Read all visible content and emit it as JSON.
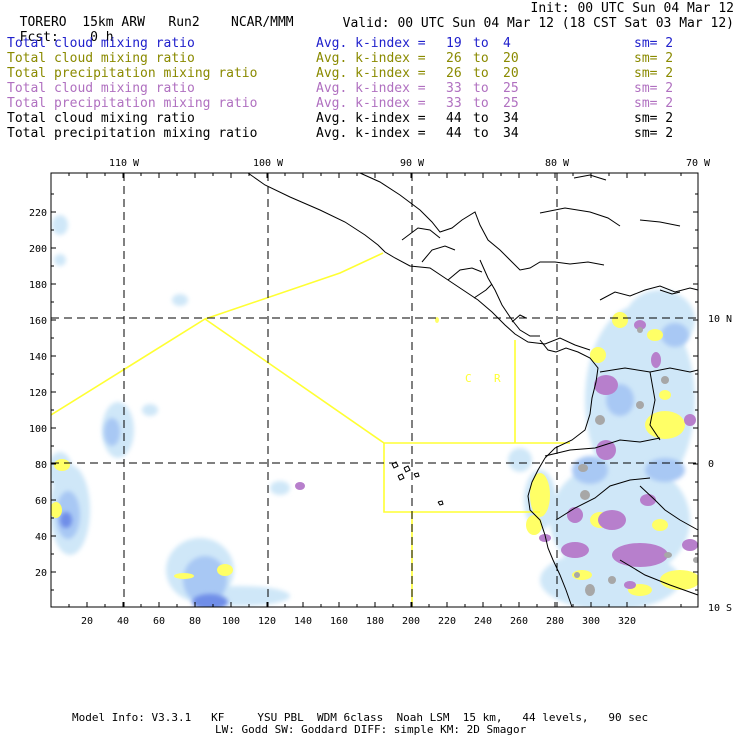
{
  "header": {
    "model": "TORERO",
    "resolution": "15km ARW",
    "run": "Run2",
    "org": "NCAR/MMM",
    "init": "Init: 00 UTC Sun 04 Mar 12",
    "fcst_label": "Fcst:",
    "fcst_value": "0 h",
    "valid": "Valid: 00 UTC Sun 04 Mar 12 (18 CST Sat 03 Mar 12)"
  },
  "fields": [
    {
      "name": "Total cloud mixing ratio",
      "index": "Avg. k-index =",
      "from": "19",
      "to_word": "to",
      "to": "4",
      "sm": "sm= 2",
      "color": "#2020cc"
    },
    {
      "name": "Total cloud mixing ratio",
      "index": "Avg. k-index =",
      "from": "26",
      "to_word": "to",
      "to": "20",
      "sm": "sm= 2",
      "color": "#8a8a00"
    },
    {
      "name": "Total precipitation mixing ratio",
      "index": "Avg. k-index =",
      "from": "26",
      "to_word": "to",
      "to": "20",
      "sm": "sm= 2",
      "color": "#8a8a00"
    },
    {
      "name": "Total cloud mixing ratio",
      "index": "Avg. k-index =",
      "from": "33",
      "to_word": "to",
      "to": "25",
      "sm": "sm= 2",
      "color": "#b070c0"
    },
    {
      "name": "Total precipitation mixing ratio",
      "index": "Avg. k-index =",
      "from": "33",
      "to_word": "to",
      "to": "25",
      "sm": "sm= 2",
      "color": "#b070c0"
    },
    {
      "name": "Total cloud mixing ratio",
      "index": "Avg. k-index =",
      "from": "44",
      "to_word": "to",
      "to": "34",
      "sm": "sm= 2",
      "color": "#000000"
    },
    {
      "name": "Total precipitation mixing ratio",
      "index": "Avg. k-index =",
      "from": "44",
      "to_word": "to",
      "to": "34",
      "sm": "sm= 2",
      "color": "#000000"
    }
  ],
  "map": {
    "lon_labels": [
      "110 W",
      "100 W",
      "90 W",
      "80 W",
      "70 W"
    ],
    "lat_labels": [
      "10 N",
      "0",
      "10 S"
    ],
    "y_ticks": [
      "220",
      "200",
      "180",
      "160",
      "140",
      "120",
      "100",
      "80",
      "60",
      "40",
      "20"
    ],
    "x_ticks": [
      "20",
      "40",
      "60",
      "80",
      "100",
      "120",
      "140",
      "160",
      "180",
      "200",
      "220",
      "240",
      "260",
      "280",
      "300",
      "320"
    ],
    "region_labels": [
      "C",
      "R"
    ],
    "colors": {
      "border": "#000000",
      "flight_track": "#ffff33",
      "light_blue": "#cfe7f8",
      "mid_blue": "#a8c8f4",
      "deep_blue": "#6f8ee8",
      "purple": "#b77fcc",
      "yellow": "#ffff66",
      "gray": "#a7a7a7"
    }
  },
  "footer": {
    "line1": "Model Info: V3.3.1   KF     YSU PBL  WDM 6class  Noah LSM  15 km,   44 levels,   90 sec",
    "line2": "LW: Godd SW: Goddard DIFF: simple KM: 2D Smagor"
  }
}
